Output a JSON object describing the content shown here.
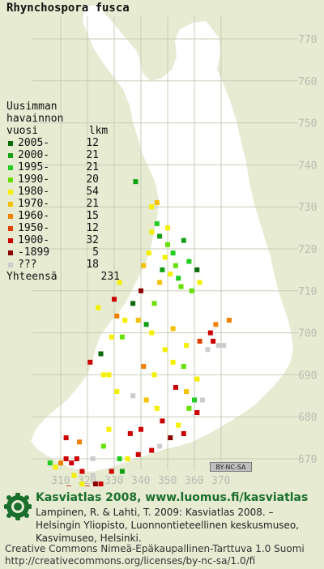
{
  "species_name": "Rhynchospora fusca",
  "legend": {
    "title_lines": [
      "Uusimman",
      "havainnon",
      "vuosi        lkm"
    ],
    "items": [
      {
        "label": "2005-",
        "count": "12",
        "color": "#0a6a0a"
      },
      {
        "label": "2000-",
        "count": "21",
        "color": "#11a011"
      },
      {
        "label": "1995-",
        "count": "21",
        "color": "#22cc22"
      },
      {
        "label": "1990-",
        "count": "20",
        "color": "#66e000"
      },
      {
        "label": "1980-",
        "count": "54",
        "color": "#f5f000"
      },
      {
        "label": "1970-",
        "count": "21",
        "color": "#f5c000"
      },
      {
        "label": "1960-",
        "count": "15",
        "color": "#f08000"
      },
      {
        "label": "1950-",
        "count": "12",
        "color": "#e04000"
      },
      {
        "label": "1900-",
        "count": "32",
        "color": "#cc0000"
      },
      {
        "label": "-1899",
        "count": "5",
        "color": "#8a0000"
      },
      {
        "label": "???",
        "count": "18",
        "color": "#cccccc"
      }
    ],
    "total_label": "Yhteensä",
    "total_count": "231"
  },
  "grid": {
    "y_labels": [
      "770",
      "760",
      "750",
      "740",
      "730",
      "720",
      "710",
      "700",
      "690",
      "680",
      "670"
    ],
    "x_labels": [
      "310",
      "320",
      "330",
      "340",
      "350",
      "360",
      "370"
    ]
  },
  "cc_badge": "BY-NC-SA",
  "footer": {
    "title": "Kasviatlas 2008, www.luomus.fi/kasviatlas",
    "citation_lines": [
      "Lampinen, R. & Lahti, T. 2009: Kasviatlas 2008. –",
      "Helsingin Yliopisto, Luonnontieteellinen keskusmuseo,",
      "Kasvimuseo, Helsinki."
    ],
    "license_lines": [
      "Creative Commons Nimeä-Epäkaupallinen-Tarttuva 1.0 Suomi",
      "http://creativecommons.org/licenses/by-nc-sa/1.0/fi"
    ]
  },
  "observations": [
    {
      "e": 346,
      "n": 726,
      "c": 2
    },
    {
      "e": 344,
      "n": 724,
      "c": 4
    },
    {
      "e": 347,
      "n": 723,
      "c": 1
    },
    {
      "e": 350,
      "n": 721,
      "c": 3
    },
    {
      "e": 352,
      "n": 719,
      "c": 2
    },
    {
      "e": 349,
      "n": 718,
      "c": 4
    },
    {
      "e": 353,
      "n": 716,
      "c": 3
    },
    {
      "e": 348,
      "n": 715,
      "c": 1
    },
    {
      "e": 351,
      "n": 714,
      "c": 4
    },
    {
      "e": 354,
      "n": 713,
      "c": 2
    },
    {
      "e": 347,
      "n": 712,
      "c": 5
    },
    {
      "e": 355,
      "n": 711,
      "c": 3
    },
    {
      "e": 343,
      "n": 719,
      "c": 4
    },
    {
      "e": 341,
      "n": 716,
      "c": 5
    },
    {
      "e": 358,
      "n": 717,
      "c": 2
    },
    {
      "e": 361,
      "n": 715,
      "c": 0
    },
    {
      "e": 362,
      "n": 712,
      "c": 4
    },
    {
      "e": 359,
      "n": 710,
      "c": 3
    },
    {
      "e": 338,
      "n": 736,
      "c": 1
    },
    {
      "e": 344,
      "n": 730,
      "c": 4
    },
    {
      "e": 346,
      "n": 731,
      "c": 5
    },
    {
      "e": 350,
      "n": 725,
      "c": 4
    },
    {
      "e": 356,
      "n": 722,
      "c": 1
    },
    {
      "e": 340,
      "n": 710,
      "c": 9
    },
    {
      "e": 332,
      "n": 712,
      "c": 4
    },
    {
      "e": 330,
      "n": 708,
      "c": 8
    },
    {
      "e": 337,
      "n": 707,
      "c": 0
    },
    {
      "e": 324,
      "n": 706,
      "c": 4
    },
    {
      "e": 331,
      "n": 704,
      "c": 6
    },
    {
      "e": 339,
      "n": 703,
      "c": 5
    },
    {
      "e": 334,
      "n": 703,
      "c": 4
    },
    {
      "e": 342,
      "n": 702,
      "c": 1
    },
    {
      "e": 344,
      "n": 700,
      "c": 4
    },
    {
      "e": 352,
      "n": 701,
      "c": 5
    },
    {
      "e": 357,
      "n": 697,
      "c": 4
    },
    {
      "e": 362,
      "n": 698,
      "c": 7
    },
    {
      "e": 366,
      "n": 700,
      "c": 8
    },
    {
      "e": 367,
      "n": 698,
      "c": 8
    },
    {
      "e": 369,
      "n": 697,
      "c": 10
    },
    {
      "e": 371,
      "n": 697,
      "c": 10
    },
    {
      "e": 368,
      "n": 702,
      "c": 6
    },
    {
      "e": 373,
      "n": 703,
      "c": 6
    },
    {
      "e": 321,
      "n": 693,
      "c": 8
    },
    {
      "e": 326,
      "n": 690,
      "c": 4
    },
    {
      "e": 328,
      "n": 690,
      "c": 4
    },
    {
      "e": 345,
      "n": 690,
      "c": 4
    },
    {
      "e": 341,
      "n": 692,
      "c": 6
    },
    {
      "e": 352,
      "n": 693,
      "c": 4
    },
    {
      "e": 356,
      "n": 692,
      "c": 3
    },
    {
      "e": 361,
      "n": 689,
      "c": 4
    },
    {
      "e": 353,
      "n": 687,
      "c": 8
    },
    {
      "e": 357,
      "n": 686,
      "c": 5
    },
    {
      "e": 360,
      "n": 684,
      "c": 2
    },
    {
      "e": 358,
      "n": 682,
      "c": 3
    },
    {
      "e": 361,
      "n": 681,
      "c": 8
    },
    {
      "e": 346,
      "n": 682,
      "c": 4
    },
    {
      "e": 342,
      "n": 684,
      "c": 5
    },
    {
      "e": 348,
      "n": 679,
      "c": 8
    },
    {
      "e": 354,
      "n": 678,
      "c": 4
    },
    {
      "e": 356,
      "n": 676,
      "c": 8
    },
    {
      "e": 351,
      "n": 675,
      "c": 9
    },
    {
      "e": 347,
      "n": 673,
      "c": 10
    },
    {
      "e": 344,
      "n": 672,
      "c": 8
    },
    {
      "e": 339,
      "n": 671,
      "c": 8
    },
    {
      "e": 335,
      "n": 670,
      "c": 4
    },
    {
      "e": 333,
      "n": 667,
      "c": 1
    },
    {
      "e": 332,
      "n": 670,
      "c": 2
    },
    {
      "e": 329,
      "n": 667,
      "c": 8
    },
    {
      "e": 325,
      "n": 664,
      "c": 8
    },
    {
      "e": 323,
      "n": 664,
      "c": 9
    },
    {
      "e": 322,
      "n": 666,
      "c": 10
    },
    {
      "e": 318,
      "n": 667,
      "c": 8
    },
    {
      "e": 316,
      "n": 670,
      "c": 8
    },
    {
      "e": 314,
      "n": 669,
      "c": 8
    },
    {
      "e": 312,
      "n": 670,
      "c": 8
    },
    {
      "e": 310,
      "n": 669,
      "c": 6
    },
    {
      "e": 308,
      "n": 668,
      "c": 4
    },
    {
      "e": 306,
      "n": 669,
      "c": 2
    },
    {
      "e": 315,
      "n": 666,
      "c": 4
    },
    {
      "e": 313,
      "n": 663,
      "c": 8
    },
    {
      "e": 317,
      "n": 662,
      "c": 9
    },
    {
      "e": 318,
      "n": 664,
      "c": 4
    },
    {
      "e": 320,
      "n": 663,
      "c": 8
    },
    {
      "e": 312,
      "n": 675,
      "c": 8
    },
    {
      "e": 317,
      "n": 674,
      "c": 6
    },
    {
      "e": 326,
      "n": 673,
      "c": 3
    },
    {
      "e": 336,
      "n": 676,
      "c": 8
    },
    {
      "e": 340,
      "n": 677,
      "c": 8
    },
    {
      "e": 328,
      "n": 677,
      "c": 4
    },
    {
      "e": 322,
      "n": 670,
      "c": 10
    },
    {
      "e": 337,
      "n": 685,
      "c": 10
    },
    {
      "e": 331,
      "n": 686,
      "c": 4
    },
    {
      "e": 325,
      "n": 695,
      "c": 0
    },
    {
      "e": 329,
      "n": 699,
      "c": 4
    },
    {
      "e": 333,
      "n": 699,
      "c": 3
    },
    {
      "e": 349,
      "n": 696,
      "c": 4
    },
    {
      "e": 345,
      "n": 707,
      "c": 3
    },
    {
      "e": 363,
      "n": 684,
      "c": 10
    },
    {
      "e": 365,
      "n": 696,
      "c": 10
    }
  ]
}
